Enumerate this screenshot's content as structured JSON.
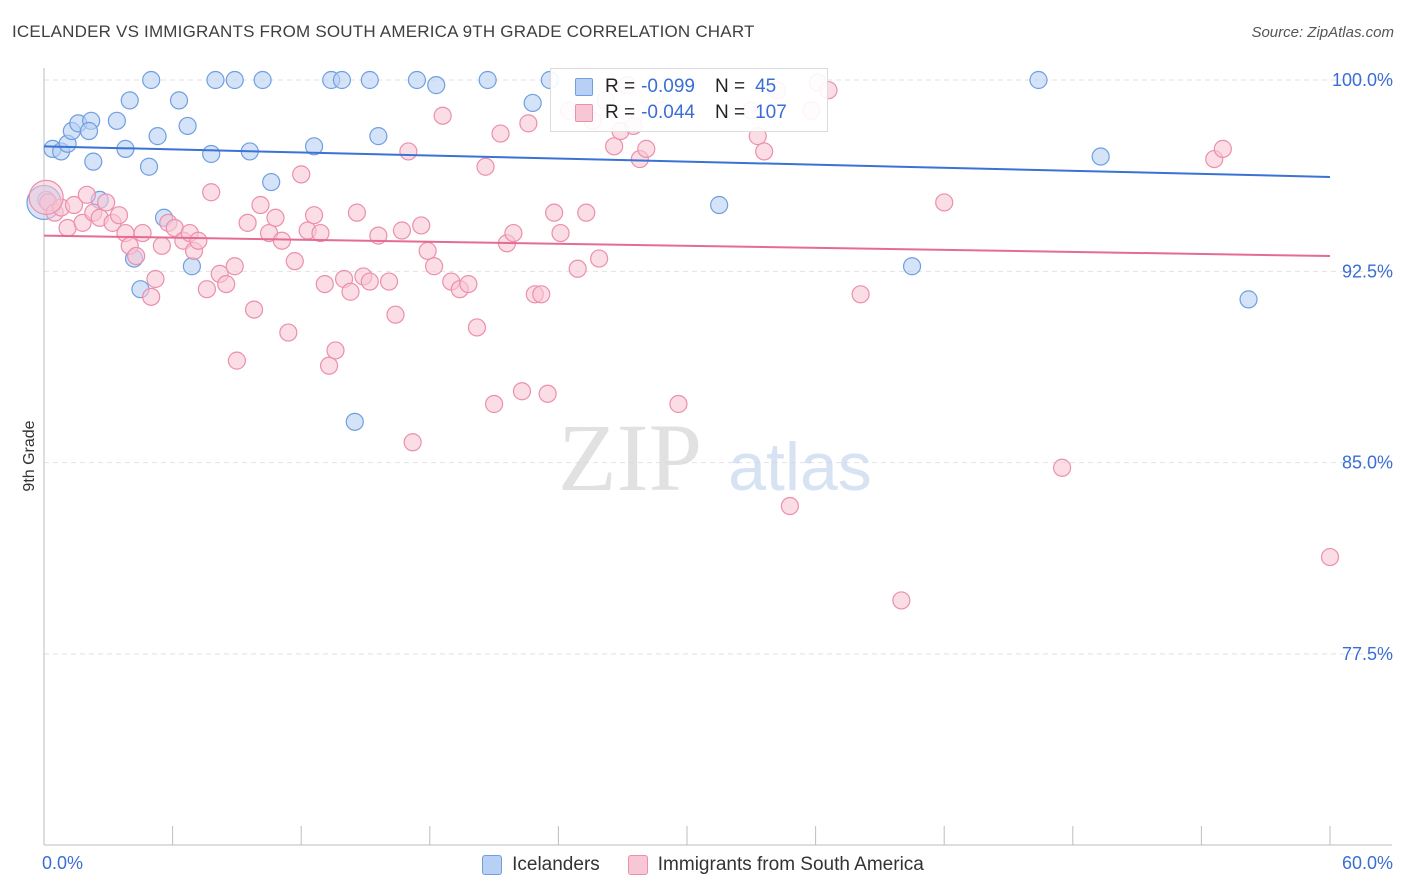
{
  "title": "ICELANDER VS IMMIGRANTS FROM SOUTH AMERICA 9TH GRADE CORRELATION CHART",
  "source": "Source: ZipAtlas.com",
  "watermark": {
    "zip": "ZIP",
    "atlas": "atlas"
  },
  "legend": {
    "series1": {
      "r_label": "R =",
      "r_value": "-0.099",
      "n_label": "N =",
      "n_value": "45"
    },
    "series2": {
      "r_label": "R =",
      "r_value": "-0.044",
      "n_label": "N =",
      "n_value": "107"
    }
  },
  "colors": {
    "blue_fill": "#b8d0f3",
    "blue_stroke": "#6f9fe0",
    "blue_line": "#3a72d6",
    "pink_fill": "#f8c7d6",
    "pink_stroke": "#ec8fab",
    "pink_line": "#e56b93",
    "axis_text": "#3a6ed6",
    "grid": "#e2e2e2"
  },
  "chart_data": {
    "type": "scatter",
    "title": "ICELANDER VS IMMIGRANTS FROM SOUTH AMERICA 9TH GRADE CORRELATION CHART",
    "xlabel": "",
    "ylabel": "9th Grade",
    "xlim": [
      0,
      60
    ],
    "ylim": [
      70,
      101.5
    ],
    "x_tick_labels": [
      "0.0%",
      "60.0%"
    ],
    "y_ticks": [
      100,
      92.5,
      85,
      77.5
    ],
    "y_tick_labels": [
      "100.0%",
      "92.5%",
      "85.0%",
      "77.5%"
    ],
    "series": [
      {
        "name": "Icelanders",
        "color": "#6f9fe0",
        "trend": {
          "x0": 0,
          "y0": 97.4,
          "x1": 60,
          "y1": 96.2
        },
        "points": [
          [
            0.1,
            95.3
          ],
          [
            0.4,
            97.3
          ],
          [
            0.8,
            97.2
          ],
          [
            1.1,
            97.5
          ],
          [
            1.3,
            98.0
          ],
          [
            1.6,
            98.3
          ],
          [
            2.2,
            98.4
          ],
          [
            2.1,
            98.0
          ],
          [
            2.3,
            96.8
          ],
          [
            2.6,
            95.3
          ],
          [
            3.4,
            98.4
          ],
          [
            3.8,
            97.3
          ],
          [
            4.0,
            99.2
          ],
          [
            4.2,
            93.0
          ],
          [
            4.5,
            91.8
          ],
          [
            4.9,
            96.6
          ],
          [
            5.0,
            100.0
          ],
          [
            5.3,
            97.8
          ],
          [
            5.6,
            94.6
          ],
          [
            6.3,
            99.2
          ],
          [
            6.7,
            98.2
          ],
          [
            6.9,
            92.7
          ],
          [
            7.8,
            97.1
          ],
          [
            8.0,
            100.0
          ],
          [
            8.9,
            100.0
          ],
          [
            9.6,
            97.2
          ],
          [
            10.2,
            100.0
          ],
          [
            10.6,
            96.0
          ],
          [
            12.6,
            97.4
          ],
          [
            13.4,
            100.0
          ],
          [
            13.9,
            100.0
          ],
          [
            14.5,
            86.6
          ],
          [
            15.2,
            100.0
          ],
          [
            15.6,
            97.8
          ],
          [
            17.4,
            100.0
          ],
          [
            18.3,
            99.8
          ],
          [
            20.7,
            100.0
          ],
          [
            22.8,
            99.1
          ],
          [
            23.6,
            100.0
          ],
          [
            31.5,
            95.1
          ],
          [
            40.5,
            92.7
          ],
          [
            46.4,
            100.0
          ],
          [
            49.3,
            97.0
          ],
          [
            56.2,
            91.4
          ],
          [
            0.0,
            95.2
          ]
        ]
      },
      {
        "name": "Immigrants from South America",
        "color": "#ec8fab",
        "trend": {
          "x0": 0,
          "y0": 93.9,
          "x1": 60,
          "y1": 93.1
        },
        "points": [
          [
            0.2,
            95.2
          ],
          [
            0.5,
            94.8
          ],
          [
            0.8,
            95.0
          ],
          [
            1.1,
            94.2
          ],
          [
            1.4,
            95.1
          ],
          [
            1.8,
            94.4
          ],
          [
            2.0,
            95.5
          ],
          [
            2.3,
            94.8
          ],
          [
            2.6,
            94.6
          ],
          [
            2.9,
            95.2
          ],
          [
            3.2,
            94.4
          ],
          [
            3.5,
            94.7
          ],
          [
            3.8,
            94.0
          ],
          [
            4.0,
            93.5
          ],
          [
            4.3,
            93.1
          ],
          [
            4.6,
            94.0
          ],
          [
            5.0,
            91.5
          ],
          [
            5.2,
            92.2
          ],
          [
            5.5,
            93.5
          ],
          [
            5.8,
            94.4
          ],
          [
            6.1,
            94.2
          ],
          [
            6.5,
            93.7
          ],
          [
            6.8,
            94.0
          ],
          [
            7.0,
            93.3
          ],
          [
            7.2,
            93.7
          ],
          [
            7.6,
            91.8
          ],
          [
            7.8,
            95.6
          ],
          [
            8.2,
            92.4
          ],
          [
            8.5,
            92.0
          ],
          [
            8.9,
            92.7
          ],
          [
            9.0,
            89.0
          ],
          [
            9.5,
            94.4
          ],
          [
            9.8,
            91.0
          ],
          [
            10.1,
            95.1
          ],
          [
            10.5,
            94.0
          ],
          [
            10.8,
            94.6
          ],
          [
            11.1,
            93.7
          ],
          [
            11.4,
            90.1
          ],
          [
            11.7,
            92.9
          ],
          [
            12.0,
            96.3
          ],
          [
            12.3,
            94.1
          ],
          [
            12.6,
            94.7
          ],
          [
            12.9,
            94.0
          ],
          [
            13.1,
            92.0
          ],
          [
            13.3,
            88.8
          ],
          [
            13.6,
            89.4
          ],
          [
            14.0,
            92.2
          ],
          [
            14.3,
            91.7
          ],
          [
            14.6,
            94.8
          ],
          [
            14.9,
            92.3
          ],
          [
            15.2,
            92.1
          ],
          [
            15.6,
            93.9
          ],
          [
            16.1,
            92.1
          ],
          [
            16.4,
            90.8
          ],
          [
            16.7,
            94.1
          ],
          [
            17.0,
            97.2
          ],
          [
            17.2,
            85.8
          ],
          [
            17.6,
            94.3
          ],
          [
            17.9,
            93.3
          ],
          [
            18.2,
            92.7
          ],
          [
            18.6,
            98.6
          ],
          [
            19.0,
            92.1
          ],
          [
            19.4,
            91.8
          ],
          [
            19.8,
            92.0
          ],
          [
            20.2,
            90.3
          ],
          [
            20.6,
            96.6
          ],
          [
            21.0,
            87.3
          ],
          [
            21.3,
            97.9
          ],
          [
            21.6,
            93.6
          ],
          [
            21.9,
            94.0
          ],
          [
            22.3,
            87.8
          ],
          [
            22.6,
            98.3
          ],
          [
            22.9,
            91.6
          ],
          [
            23.2,
            91.6
          ],
          [
            23.5,
            87.7
          ],
          [
            23.8,
            94.8
          ],
          [
            24.1,
            94.0
          ],
          [
            24.5,
            98.8
          ],
          [
            24.9,
            92.6
          ],
          [
            25.3,
            94.8
          ],
          [
            25.6,
            98.4
          ],
          [
            25.9,
            93.0
          ],
          [
            26.2,
            99.2
          ],
          [
            26.6,
            97.4
          ],
          [
            26.9,
            98.0
          ],
          [
            27.2,
            99.8
          ],
          [
            27.5,
            98.2
          ],
          [
            27.8,
            96.9
          ],
          [
            28.1,
            97.3
          ],
          [
            28.8,
            98.8
          ],
          [
            29.6,
            87.3
          ],
          [
            33.0,
            98.8
          ],
          [
            33.3,
            97.8
          ],
          [
            33.6,
            97.2
          ],
          [
            34.2,
            99.6
          ],
          [
            34.8,
            83.3
          ],
          [
            35.8,
            98.8
          ],
          [
            36.1,
            99.9
          ],
          [
            36.6,
            99.6
          ],
          [
            38.1,
            91.6
          ],
          [
            40.0,
            79.6
          ],
          [
            42.0,
            95.2
          ],
          [
            47.5,
            84.8
          ],
          [
            54.6,
            96.9
          ],
          [
            55.0,
            97.3
          ],
          [
            60.0,
            81.3
          ],
          [
            0.1,
            95.4
          ]
        ]
      }
    ]
  },
  "bottom_legend": [
    {
      "label": "Icelanders"
    },
    {
      "label": "Immigrants from South America"
    }
  ]
}
